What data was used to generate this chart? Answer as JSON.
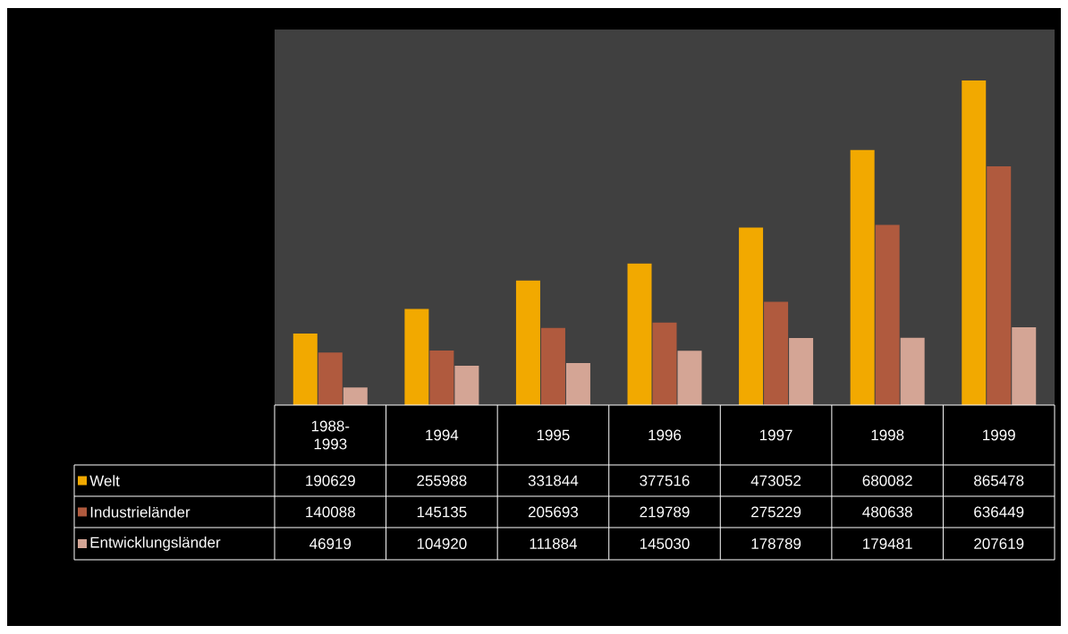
{
  "chart_data": {
    "type": "bar",
    "categories": [
      "1988-1993",
      "1994",
      "1995",
      "1996",
      "1997",
      "1998",
      "1999"
    ],
    "series": [
      {
        "name": "Welt",
        "color": "#f2a900",
        "values": [
          190629,
          255988,
          331844,
          377516,
          473052,
          680082,
          865478
        ]
      },
      {
        "name": "Industrieländer",
        "color": "#b05a3e",
        "values": [
          140088,
          145135,
          205693,
          219789,
          275229,
          480638,
          636449
        ]
      },
      {
        "name": "Entwicklungsländer",
        "color": "#d4a595",
        "values": [
          46919,
          104920,
          111884,
          145030,
          178789,
          179481,
          207619
        ]
      }
    ],
    "data_labels": true,
    "legend": "bottom"
  }
}
